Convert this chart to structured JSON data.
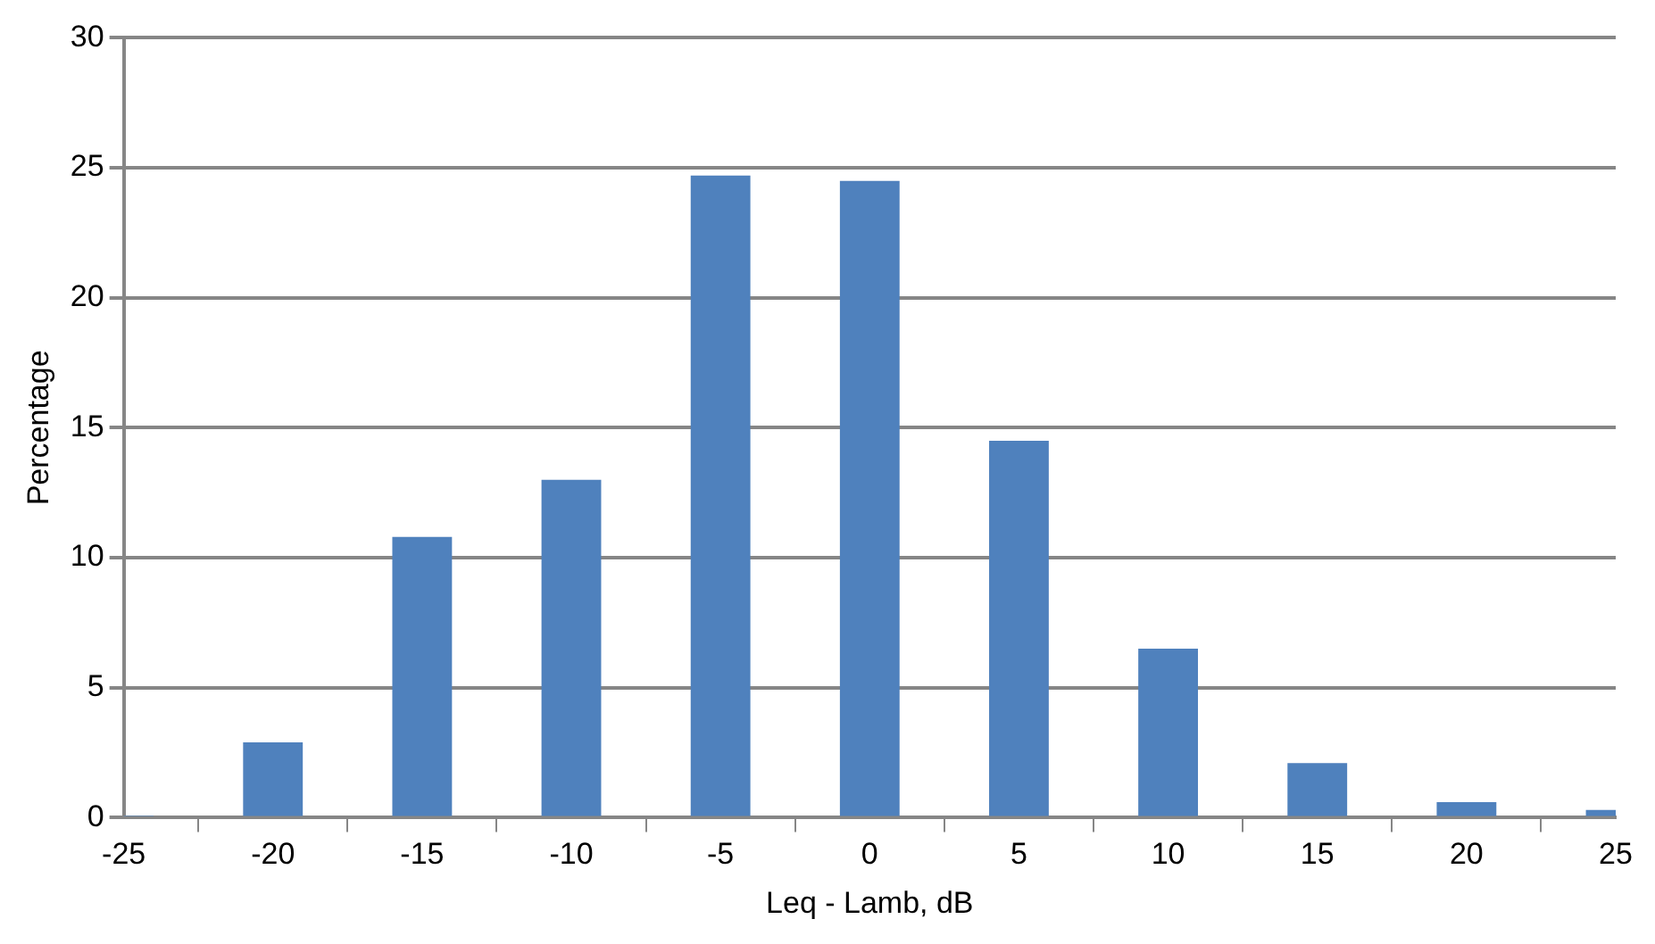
{
  "chart_data": {
    "type": "bar",
    "xlabel": "Leq - Lamb, dB",
    "ylabel": "Percentage",
    "x": [
      -25,
      -20,
      -15,
      -10,
      -5,
      0,
      5,
      10,
      15,
      20,
      25
    ],
    "values": [
      0.05,
      2.9,
      10.8,
      13.0,
      24.7,
      24.5,
      14.5,
      6.5,
      2.1,
      0.6,
      0.3
    ],
    "color": "#4f81bd",
    "xlim": [
      -25,
      25
    ],
    "xticks": [
      -25,
      -20,
      -15,
      -10,
      -5,
      0,
      5,
      10,
      15,
      20,
      25
    ],
    "ylim": [
      0,
      30
    ],
    "yticks": [
      0,
      5,
      10,
      15,
      20,
      25,
      30
    ],
    "grid": "y"
  }
}
